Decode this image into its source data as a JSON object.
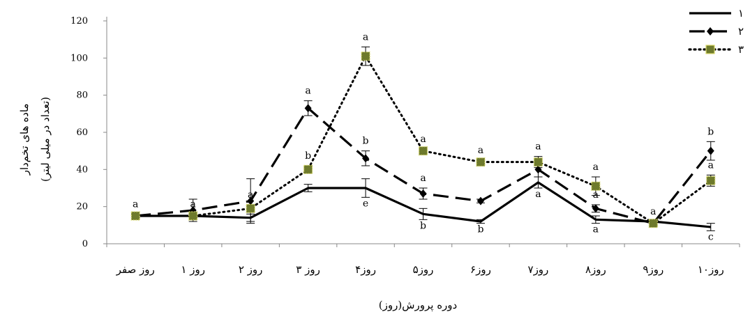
{
  "chart_data": {
    "type": "line",
    "xlabel": "دوره پرورش(روز)",
    "ylabel": "ماده های تخم‌دار",
    "ylabel_units": "(تعداد در میلی لیتر)",
    "ylim": [
      0,
      120
    ],
    "yticks": [
      0,
      20,
      40,
      60,
      80,
      100,
      120
    ],
    "grid": false,
    "legend_position": "top-right",
    "categories": [
      "روز صفر",
      "روز ۱",
      "روز ۲",
      "روز ۳",
      "روز۴",
      "روز۵",
      "روز۶",
      "روز۷",
      "روز۸",
      "روز۹",
      "روز۱۰"
    ],
    "series": [
      {
        "name": "۱",
        "style": "solid",
        "marker": "none",
        "color": "#000000",
        "values": [
          15,
          15,
          14,
          30,
          30,
          16,
          12,
          33,
          13,
          12,
          9
        ],
        "errors": [
          1,
          1,
          2,
          2,
          5,
          3,
          1,
          3,
          2,
          1,
          2
        ],
        "sig_letters": [
          "",
          "",
          "",
          "",
          "e",
          "b",
          "b",
          "a",
          "a",
          "",
          "c"
        ]
      },
      {
        "name": "۲",
        "style": "dashed",
        "marker": "diamond",
        "color": "#000000",
        "values": [
          15,
          18,
          23,
          73,
          46,
          27,
          23,
          40,
          19,
          11,
          50
        ],
        "errors": [
          1,
          6,
          12,
          4,
          4,
          3,
          1,
          4,
          2,
          1,
          5
        ],
        "sig_letters": [
          "",
          "",
          "",
          "a",
          "b",
          "a",
          "",
          "",
          "a",
          "",
          "b"
        ]
      },
      {
        "name": "۳",
        "style": "dotted",
        "marker": "square",
        "color": "#000000",
        "marker_fill": "#6e7a2c",
        "values": [
          15,
          15,
          19,
          40,
          101,
          50,
          44,
          44,
          31,
          11,
          34
        ],
        "errors": [
          1,
          1,
          2,
          2,
          5,
          1,
          1,
          3,
          5,
          1,
          3
        ],
        "sig_letters": [
          "a",
          "a",
          "a",
          "b",
          "a",
          "a",
          "a",
          "a",
          "a",
          "a",
          "a"
        ]
      }
    ]
  }
}
